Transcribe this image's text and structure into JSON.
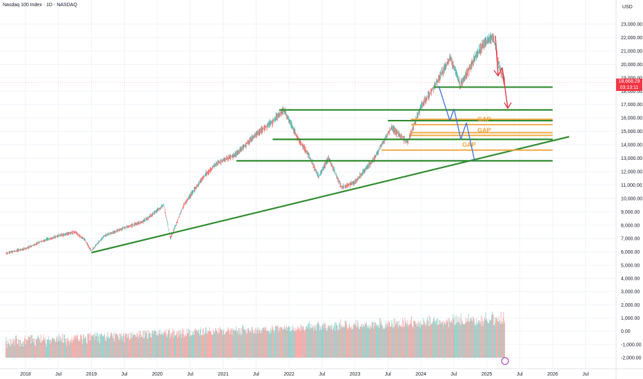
{
  "header": {
    "symbol_title": "Nasdaq 100 Index · 1D · NASDAQ",
    "currency": "USD"
  },
  "price_badge": {
    "price": "18,668.29",
    "countdown": "03:13:11"
  },
  "colors": {
    "up": "#26a69a",
    "down": "#ef5350",
    "support_line": "#2e8b2e",
    "gap_line": "#f2a33a",
    "blue_arrow": "#3a6fd8",
    "red_arrow": "#e53945"
  },
  "chart_data": {
    "type": "candlestick",
    "x_ticks": [
      "2018",
      "Jul",
      "2019",
      "Jul",
      "2020",
      "Jul",
      "2021",
      "Jul",
      "2022",
      "Jul",
      "2023",
      "Jul",
      "2024",
      "Jul",
      "2025",
      "Jul",
      "2026",
      "Jul"
    ],
    "y_price_ticks": [
      "23,000.00",
      "22,000.00",
      "21,000.00",
      "20,000.00",
      "19,000.00",
      "18,000.00",
      "17,000.00",
      "16,000.00",
      "15,000.00",
      "14,000.00",
      "13,000.00",
      "12,000.00",
      "11,000.00",
      "10,000.00",
      "9,000.00",
      "8,000.00",
      "7,000.00",
      "6,000.00",
      "5,000.00"
    ],
    "y_volume_ticks": [
      "4,000.00",
      "3,000.00",
      "2,000.00",
      "1,000.00",
      "0.00",
      "-1,000.00",
      "-2,000.00"
    ],
    "ylim": [
      5000,
      23500
    ],
    "price_path": [
      [
        2017.7,
        5900
      ],
      [
        2018.0,
        6250
      ],
      [
        2018.25,
        6800
      ],
      [
        2018.5,
        7200
      ],
      [
        2018.75,
        7500
      ],
      [
        2018.9,
        6900
      ],
      [
        2019.0,
        6100
      ],
      [
        2019.2,
        7200
      ],
      [
        2019.5,
        7800
      ],
      [
        2019.8,
        8300
      ],
      [
        2020.1,
        9500
      ],
      [
        2020.2,
        7000
      ],
      [
        2020.4,
        9500
      ],
      [
        2020.7,
        11600
      ],
      [
        2020.9,
        12600
      ],
      [
        2021.2,
        13300
      ],
      [
        2021.5,
        14800
      ],
      [
        2021.75,
        15700
      ],
      [
        2021.92,
        16600
      ],
      [
        2022.1,
        14800
      ],
      [
        2022.3,
        13200
      ],
      [
        2022.45,
        11600
      ],
      [
        2022.6,
        13000
      ],
      [
        2022.8,
        10800
      ],
      [
        2023.0,
        11200
      ],
      [
        2023.3,
        13000
      ],
      [
        2023.55,
        15300
      ],
      [
        2023.8,
        14200
      ],
      [
        2024.0,
        16800
      ],
      [
        2024.2,
        18300
      ],
      [
        2024.45,
        20500
      ],
      [
        2024.6,
        18400
      ],
      [
        2024.8,
        20300
      ],
      [
        2024.95,
        21500
      ],
      [
        2025.1,
        22100
      ],
      [
        2025.2,
        19600
      ],
      [
        2025.28,
        18668
      ]
    ],
    "support_lines": [
      {
        "label": "",
        "y": 18300,
        "x_start": 2024.2,
        "x_end": 2026.0
      },
      {
        "label": "",
        "y": 16600,
        "x_start": 2021.85,
        "x_end": 2026.0
      },
      {
        "label": "",
        "y": 15800,
        "x_start": 2023.5,
        "x_end": 2026.0
      },
      {
        "label": "",
        "y": 14400,
        "x_start": 2021.75,
        "x_end": 2026.0
      },
      {
        "label": "",
        "y": 12800,
        "x_start": 2021.2,
        "x_end": 2026.0
      }
    ],
    "trendline": {
      "x1": 2019.0,
      "y1": 5950,
      "x2": 2026.25,
      "y2": 14600
    },
    "gap_zones": [
      {
        "label": "GAP",
        "y_top": 15900,
        "y_bottom": 15500,
        "x_start": 2023.85,
        "x_end": 2026.0
      },
      {
        "label": "GAP",
        "y_top": 14900,
        "y_bottom": 14700,
        "x_start": 2023.85,
        "x_end": 2026.0
      },
      {
        "label": "GAP",
        "y_top": 13600,
        "y_bottom": 13600,
        "x_start": 2023.4,
        "x_end": 2026.0
      }
    ],
    "volume_band": {
      "min": -2000,
      "max": 4000
    }
  }
}
